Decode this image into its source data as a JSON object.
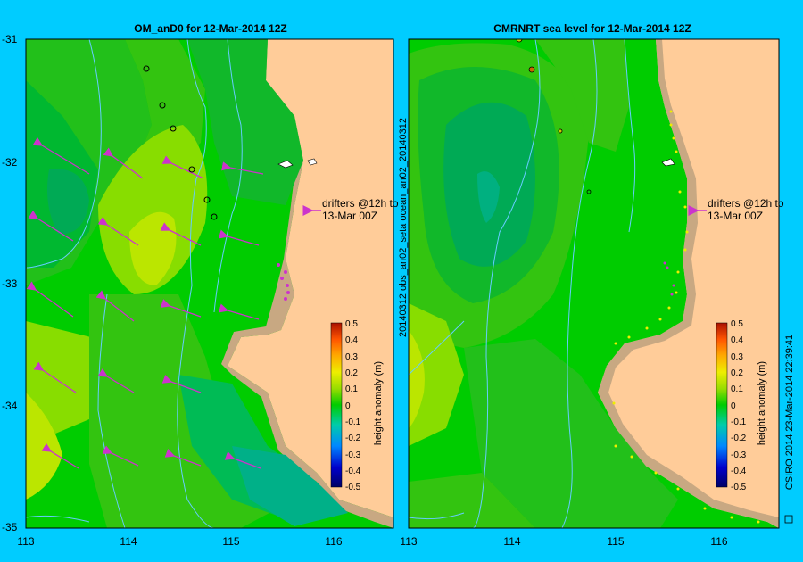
{
  "left_panel": {
    "title": "OM_anD0 for 12-Mar-2014 12Z",
    "lat_labels": [
      "-31",
      "-32",
      "-33",
      "-34",
      "-35"
    ],
    "lon_labels": [
      "113",
      "114",
      "115",
      "116"
    ],
    "drifters_line1": "drifters @12h to",
    "drifters_line2": "13-Mar 00Z",
    "colorbar_ticks": [
      "0.5",
      "0.4",
      "0.3",
      "0.2",
      "0.1",
      "0",
      "-0.1",
      "-0.2",
      "-0.3",
      "-0.4",
      "-0.5"
    ],
    "colorbar_label": "height anomaly (m)"
  },
  "right_panel": {
    "title": "CMRNRT sea level  for 12-Mar-2014 12Z",
    "lon_labels": [
      "113",
      "114",
      "115",
      "116"
    ],
    "side_label": "20140312 obs_an02_seta      ocean_an02_20140312",
    "drifters_line1": "drifters @12h to",
    "drifters_line2": "13-Mar 00Z",
    "colorbar_ticks": [
      "0.5",
      "0.4",
      "0.3",
      "0.2",
      "0.1",
      "0",
      "-0.1",
      "-0.2",
      "-0.3",
      "-0.4",
      "-0.5"
    ],
    "colorbar_label": "height anomaly (m)"
  },
  "credit": "CSIRO 2014    23-Mar-2014 22:39:41",
  "colors": {
    "background": "#00ccff",
    "land": "#ffcc99",
    "shelf": "#c8a882",
    "drifter_arrow": "#cc33cc",
    "bathymetry": "#66ccff"
  }
}
